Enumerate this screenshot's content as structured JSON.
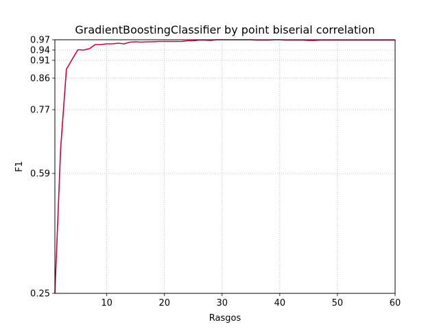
{
  "chart_data": {
    "type": "line",
    "title": "GradientBoostingClassifier by point biserial correlation",
    "xlabel": "Rasgos",
    "ylabel": "F1",
    "xlim": [
      1,
      60
    ],
    "ylim": [
      0.25,
      0.97
    ],
    "x_ticks": [
      10,
      20,
      30,
      40,
      50,
      60
    ],
    "y_ticks": [
      0.25,
      0.59,
      0.77,
      0.86,
      0.91,
      0.94,
      0.97
    ],
    "y_tick_labels": [
      "0.25",
      "0.59",
      "0.77",
      "0.86",
      "0.91",
      "0.94",
      "0.97"
    ],
    "grid": true,
    "grid_style": "dotted",
    "series": [
      {
        "color": "#c8003c",
        "x": [
          1,
          2,
          3,
          4,
          5,
          6,
          7,
          8,
          9,
          10,
          11,
          12,
          13,
          14,
          15,
          16,
          17,
          18,
          19,
          20,
          21,
          22,
          23,
          24,
          25,
          26,
          27,
          28,
          29,
          30,
          31,
          32,
          33,
          34,
          35,
          36,
          37,
          38,
          39,
          40,
          41,
          42,
          43,
          44,
          45,
          46,
          47,
          48,
          49,
          50,
          51,
          52,
          53,
          54,
          55,
          56,
          57,
          58,
          59,
          60
        ],
        "y": [
          0.25,
          0.66,
          0.885,
          0.913,
          0.941,
          0.94,
          0.944,
          0.956,
          0.956,
          0.958,
          0.958,
          0.96,
          0.958,
          0.963,
          0.964,
          0.963,
          0.964,
          0.964,
          0.965,
          0.965,
          0.965,
          0.965,
          0.965,
          0.967,
          0.967,
          0.969,
          0.969,
          0.968,
          0.97,
          0.97,
          0.97,
          0.97,
          0.97,
          0.97,
          0.97,
          0.969,
          0.969,
          0.969,
          0.97,
          0.97,
          0.969,
          0.969,
          0.969,
          0.969,
          0.968,
          0.968,
          0.969,
          0.969,
          0.969,
          0.969,
          0.969,
          0.969,
          0.969,
          0.969,
          0.969,
          0.969,
          0.969,
          0.969,
          0.969,
          0.969
        ]
      }
    ]
  }
}
